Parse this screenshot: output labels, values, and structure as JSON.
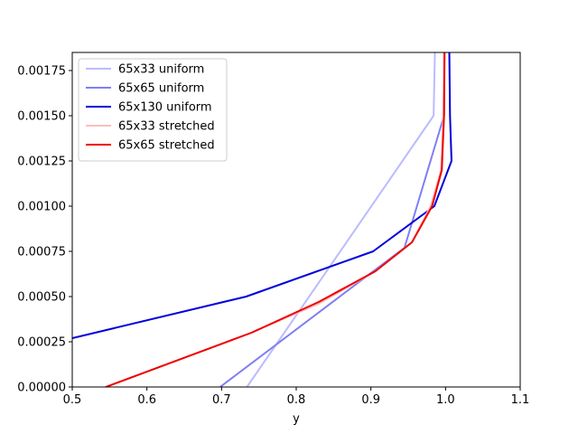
{
  "chart_data": {
    "type": "line",
    "title": "",
    "xlabel": "y",
    "ylabel": "",
    "xlim": [
      0.5,
      1.1
    ],
    "ylim": [
      0.0,
      0.00185
    ],
    "grid": false,
    "legend_placement": "top-left",
    "x_ticks": [
      0.5,
      0.6,
      0.7,
      0.8,
      0.9,
      1.0,
      1.1
    ],
    "x_tick_labels": [
      "0.5",
      "0.6",
      "0.7",
      "0.8",
      "0.9",
      "1.0",
      "1.1"
    ],
    "y_ticks": [
      0.0,
      0.00025,
      0.0005,
      0.00075,
      0.001,
      0.00125,
      0.0015,
      0.00175
    ],
    "y_tick_labels": [
      "0.00000",
      "0.00025",
      "0.00050",
      "0.00075",
      "0.00100",
      "0.00125",
      "0.00150",
      "0.00175"
    ],
    "series": [
      {
        "name": "65x33 uniform",
        "color": "#bbbbff",
        "points": [
          [
            0.734,
            0.0
          ],
          [
            0.984,
            0.0015
          ],
          [
            0.9915,
            0.003
          ]
        ]
      },
      {
        "name": "65x65 uniform",
        "color": "#7f7ff2",
        "points": [
          [
            0.698,
            0.0
          ],
          [
            0.945,
            0.00077
          ],
          [
            0.998,
            0.0015
          ],
          [
            0.9995,
            0.003
          ]
        ]
      },
      {
        "name": "65x130 uniform",
        "color": "#0000dd",
        "points": [
          [
            0.45,
            0.0
          ],
          [
            0.5,
            0.00027
          ],
          [
            0.733,
            0.0005
          ],
          [
            0.903,
            0.00075
          ],
          [
            0.985,
            0.001
          ],
          [
            1.008,
            0.00125
          ],
          [
            1.006,
            0.0015
          ],
          [
            1.002,
            0.003
          ]
        ]
      },
      {
        "name": "65x33 stretched",
        "color": "#ffbbbb",
        "points": [
          [
            0.45,
            -0.0003
          ],
          [
            0.545,
            0.0
          ],
          [
            0.74,
            0.0003
          ],
          [
            0.83,
            0.00046
          ],
          [
            0.906,
            0.00064
          ],
          [
            0.955,
            0.0008
          ],
          [
            0.98,
            0.001
          ],
          [
            0.994,
            0.0012
          ],
          [
            0.997,
            0.0015
          ],
          [
            1.0,
            0.003
          ]
        ]
      },
      {
        "name": "65x65 stretched",
        "color": "#ee0000",
        "points": [
          [
            0.45,
            -0.0003
          ],
          [
            0.545,
            0.0
          ],
          [
            0.74,
            0.0003
          ],
          [
            0.83,
            0.00047
          ],
          [
            0.906,
            0.00064
          ],
          [
            0.955,
            0.0008
          ],
          [
            0.982,
            0.001
          ],
          [
            0.995,
            0.0012
          ],
          [
            0.998,
            0.0015
          ],
          [
            1.001,
            0.003
          ]
        ]
      }
    ]
  }
}
